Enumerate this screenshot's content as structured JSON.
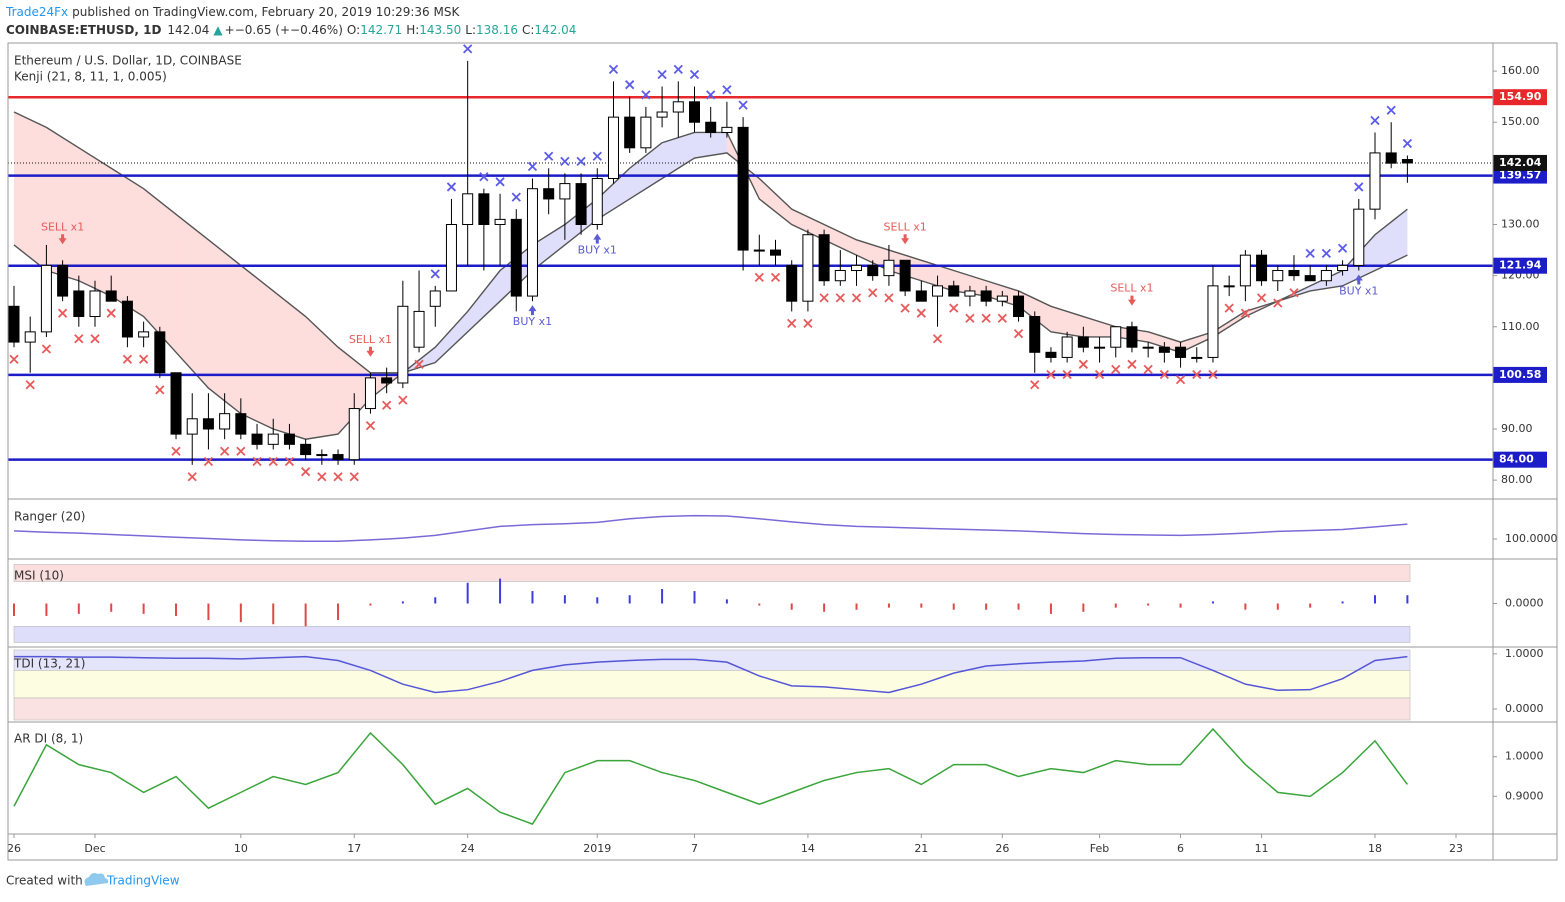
{
  "header": {
    "author": "Trade24Fx",
    "published": "published on TradingView.com, February 20, 2019 10:29:36 MSK",
    "symbol": "COINBASE:ETHUSD, 1D",
    "price": "142.04",
    "arrow": "▲",
    "change": "+−0.65 (+−0.46%)",
    "ohlc": [
      [
        "O:",
        "142.71"
      ],
      [
        "H:",
        "143.50"
      ],
      [
        "L:",
        "138.16"
      ],
      [
        "C:",
        "142.04"
      ]
    ]
  },
  "footer": {
    "text": "Created with",
    "brand": "TradingView"
  },
  "chart_data": {
    "type": "candlestick",
    "title": "Ethereum / U.S. Dollar, 1D, COINBASE",
    "indicator": "Kenji (21, 8, 11, 1, 0.005)",
    "x": [
      "2018-11-26",
      "2018-11-27",
      "2018-11-28",
      "2018-11-29",
      "2018-11-30",
      "2018-12-01",
      "2018-12-02",
      "2018-12-03",
      "2018-12-04",
      "2018-12-05",
      "2018-12-06",
      "2018-12-07",
      "2018-12-08",
      "2018-12-09",
      "2018-12-10",
      "2018-12-11",
      "2018-12-12",
      "2018-12-13",
      "2018-12-14",
      "2018-12-15",
      "2018-12-16",
      "2018-12-17",
      "2018-12-18",
      "2018-12-19",
      "2018-12-20",
      "2018-12-21",
      "2018-12-22",
      "2018-12-23",
      "2018-12-24",
      "2018-12-25",
      "2018-12-26",
      "2018-12-27",
      "2018-12-28",
      "2018-12-29",
      "2018-12-30",
      "2018-12-31",
      "2019-01-01",
      "2019-01-02",
      "2019-01-03",
      "2019-01-04",
      "2019-01-05",
      "2019-01-06",
      "2019-01-07",
      "2019-01-08",
      "2019-01-09",
      "2019-01-10",
      "2019-01-11",
      "2019-01-12",
      "2019-01-13",
      "2019-01-14",
      "2019-01-15",
      "2019-01-16",
      "2019-01-17",
      "2019-01-18",
      "2019-01-19",
      "2019-01-20",
      "2019-01-21",
      "2019-01-22",
      "2019-01-23",
      "2019-01-24",
      "2019-01-25",
      "2019-01-26",
      "2019-01-27",
      "2019-01-28",
      "2019-01-29",
      "2019-01-30",
      "2019-01-31",
      "2019-02-01",
      "2019-02-02",
      "2019-02-03",
      "2019-02-04",
      "2019-02-05",
      "2019-02-06",
      "2019-02-07",
      "2019-02-08",
      "2019-02-09",
      "2019-02-10",
      "2019-02-11",
      "2019-02-12",
      "2019-02-13",
      "2019-02-14",
      "2019-02-15",
      "2019-02-16",
      "2019-02-17",
      "2019-02-18",
      "2019-02-19",
      "2019-02-20"
    ],
    "open": [
      114,
      107,
      109,
      122,
      117,
      112,
      117,
      115,
      108,
      109,
      101,
      89,
      92,
      90,
      93,
      89,
      87,
      89,
      87,
      85,
      85,
      84,
      94,
      100,
      99,
      106,
      114,
      117,
      130,
      136,
      130,
      131,
      116,
      137,
      135,
      138,
      130,
      139,
      151,
      145,
      151,
      152,
      154,
      150,
      148,
      149,
      125,
      125,
      122,
      115,
      128,
      119,
      121,
      122,
      120,
      123,
      117,
      116,
      118,
      116,
      117,
      115,
      116,
      112,
      105,
      104,
      108,
      106,
      106,
      110,
      106,
      106,
      106,
      104,
      104,
      118,
      118,
      124,
      119,
      121,
      120,
      119,
      121,
      122,
      133,
      144,
      142.71
    ],
    "high": [
      118,
      112,
      126,
      123,
      120,
      119,
      120,
      116,
      111,
      110,
      101,
      97,
      97,
      97,
      96,
      91,
      92,
      91,
      88,
      86,
      86,
      97,
      101,
      102,
      119,
      121,
      118,
      135,
      162,
      137,
      136,
      133,
      139,
      141,
      140,
      140,
      141,
      158,
      155,
      153,
      157,
      158,
      157,
      153,
      154,
      151,
      128,
      127,
      123,
      129,
      129,
      125,
      124,
      123,
      126,
      123,
      119,
      120,
      119,
      118,
      118,
      117,
      117,
      113,
      106,
      109,
      110,
      108,
      110,
      111,
      107,
      107,
      107,
      106,
      122,
      120,
      125,
      125,
      122,
      124,
      122,
      122,
      123,
      135,
      148,
      150,
      143.5
    ],
    "low": [
      106,
      101,
      108,
      115,
      110,
      110,
      115,
      106,
      106,
      100,
      88,
      83,
      86,
      88,
      88,
      86,
      86,
      86,
      84,
      83,
      83,
      83,
      93,
      97,
      98,
      105,
      110,
      117,
      122,
      121,
      122,
      113,
      115,
      132,
      127,
      128,
      129,
      138,
      144,
      144,
      149,
      147,
      148,
      147,
      147,
      121,
      122,
      122,
      113,
      113,
      118,
      118,
      118,
      119,
      118,
      116,
      115,
      110,
      116,
      114,
      114,
      114,
      111,
      101,
      103,
      103,
      105,
      103,
      104,
      105,
      104,
      103,
      102,
      103,
      103,
      116,
      115,
      118,
      117,
      119,
      119,
      118,
      120,
      121,
      131,
      141,
      138.16
    ],
    "close": [
      107,
      109,
      122,
      116,
      112,
      117,
      115,
      108,
      109,
      101,
      89,
      92,
      90,
      93,
      89,
      87,
      89,
      87,
      85,
      85,
      84,
      94,
      100,
      99,
      114,
      113,
      117,
      130,
      136,
      130,
      131,
      116,
      137,
      135,
      138,
      130,
      139,
      151,
      145,
      151,
      152,
      154,
      150,
      148,
      149,
      125,
      125,
      124,
      115,
      128,
      119,
      121,
      122,
      120,
      123,
      117,
      115,
      118,
      116,
      117,
      115,
      116,
      112,
      105,
      104,
      108,
      106,
      106,
      110,
      106,
      106,
      105,
      104,
      104,
      118,
      118,
      124,
      119,
      121,
      120,
      119,
      121,
      122,
      133,
      144,
      142,
      142.04
    ],
    "xlim": [
      "2018-11-26",
      "2019-02-23"
    ],
    "xticks": [
      {
        "value": "2018-11-26",
        "label": "26"
      },
      {
        "value": "2018-12-01",
        "label": "Dec"
      },
      {
        "value": "2018-12-10",
        "label": "10"
      },
      {
        "value": "2018-12-17",
        "label": "17"
      },
      {
        "value": "2018-12-24",
        "label": "24"
      },
      {
        "value": "2019-01-01",
        "label": "2019"
      },
      {
        "value": "2019-01-07",
        "label": "7"
      },
      {
        "value": "2019-01-14",
        "label": "14"
      },
      {
        "value": "2019-01-21",
        "label": "21"
      },
      {
        "value": "2019-01-26",
        "label": "26"
      },
      {
        "value": "2019-02-01",
        "label": "Feb"
      },
      {
        "value": "2019-02-06",
        "label": "6"
      },
      {
        "value": "2019-02-11",
        "label": "11"
      },
      {
        "value": "2019-02-18",
        "label": "18"
      },
      {
        "value": "2019-02-23",
        "label": "23"
      }
    ],
    "ylim": [
      76.7,
      165.5
    ],
    "yticks": [
      {
        "value": 80,
        "label": "80.00"
      },
      {
        "value": 90,
        "label": "90.00"
      },
      {
        "value": 100,
        "label": "100.00"
      },
      {
        "value": 110,
        "label": "110.00"
      },
      {
        "value": 120,
        "label": "120.00"
      },
      {
        "value": 130,
        "label": "130.00"
      },
      {
        "value": 140,
        "label": "140.00"
      },
      {
        "value": 150,
        "label": "150.00"
      },
      {
        "value": 160,
        "label": "160.00"
      }
    ],
    "levels": [
      {
        "value": 154.9,
        "label": "154.90",
        "color": "#e8272a"
      },
      {
        "value": 139.57,
        "label": "139.57",
        "color": "#1c1cc8"
      },
      {
        "value": 121.94,
        "label": "121.94",
        "color": "#1c1cc8"
      },
      {
        "value": 100.58,
        "label": "100.58",
        "color": "#1c1cc8"
      },
      {
        "value": 84,
        "label": "84.00",
        "color": "#1c1cc8"
      }
    ],
    "last": {
      "value": 142.04,
      "label": "142.04",
      "color": "#111111"
    },
    "colors": {
      "up": "#ffffff",
      "down": "#000000",
      "cross_up": "#5b5be8",
      "cross_down": "#e85a5a",
      "fill_up": "rgba(110,110,240,0.22)",
      "fill_down": "rgba(250,120,120,0.25)",
      "kenji": "#555555"
    },
    "signal_colors": {
      "sell": "#e85b5b",
      "buy": "#5b5bd6"
    },
    "signals": [
      {
        "label": "SELL x1",
        "x": "2018-11-29",
        "side": "sell"
      },
      {
        "label": "SELL x1",
        "x": "2018-12-18",
        "side": "sell"
      },
      {
        "label": "BUY x1",
        "x": "2018-12-28",
        "side": "buy"
      },
      {
        "label": "BUY x1",
        "x": "2019-01-01",
        "side": "buy"
      },
      {
        "label": "SELL x1",
        "x": "2019-01-20",
        "side": "sell"
      },
      {
        "label": "SELL x1",
        "x": "2019-02-03",
        "side": "sell"
      },
      {
        "label": "BUY x1",
        "x": "2019-02-17",
        "side": "buy"
      }
    ],
    "indicator_x": [
      "2018-11-26",
      "2018-11-28",
      "2018-11-30",
      "2018-12-02",
      "2018-12-04",
      "2018-12-06",
      "2018-12-08",
      "2018-12-10",
      "2018-12-12",
      "2018-12-14",
      "2018-12-16",
      "2018-12-18",
      "2018-12-20",
      "2018-12-22",
      "2018-12-24",
      "2018-12-26",
      "2018-12-28",
      "2018-12-30",
      "2019-01-01",
      "2019-01-03",
      "2019-01-05",
      "2019-01-07",
      "2019-01-09",
      "2019-01-11",
      "2019-01-13",
      "2019-01-15",
      "2019-01-17",
      "2019-01-19",
      "2019-01-21",
      "2019-01-23",
      "2019-01-25",
      "2019-01-27",
      "2019-01-29",
      "2019-01-31",
      "2019-02-02",
      "2019-02-04",
      "2019-02-06",
      "2019-02-08",
      "2019-02-10",
      "2019-02-12",
      "2019-02-14",
      "2019-02-16",
      "2019-02-18",
      "2019-02-20"
    ],
    "kenji": [
      {
        "values": [
          152,
          149,
          145,
          141,
          137,
          132,
          127,
          122,
          117,
          112,
          106,
          101,
          101,
          103,
          109,
          115,
          121,
          126,
          131,
          135,
          139,
          143,
          144,
          139,
          133,
          130,
          127,
          125,
          123,
          121,
          119,
          117,
          114,
          112,
          110,
          109,
          107,
          109,
          113,
          115,
          117,
          118,
          121,
          124
        ]
      },
      {
        "values": [
          126,
          121,
          119,
          116,
          112,
          105,
          98,
          93,
          90,
          88,
          89,
          96,
          101,
          106,
          113,
          121,
          126,
          130,
          135,
          141,
          146,
          148,
          148,
          135,
          130,
          127,
          124,
          121,
          119,
          117,
          116,
          114,
          109,
          108,
          108,
          107,
          105,
          108,
          112,
          115,
          118,
          121,
          128,
          133
        ]
      }
    ],
    "panes": [
      {
        "type": "line",
        "title": "Ranger (20)",
        "ylim": [
          60,
          180
        ],
        "yticks": [
          {
            "value": 100,
            "label": "100.0000"
          }
        ],
        "bands": [],
        "series": [
          {
            "color": "#7a6ad8",
            "values": [
              118,
              115,
              113,
              110,
              107,
              104,
              101,
              98,
              96,
              95,
              95,
              98,
              102,
              108,
              118,
              128,
              132,
              134,
              137,
              145,
              150,
              152,
              151,
              145,
              138,
              132,
              128,
              126,
              124,
              122,
              120,
              118,
              115,
              112,
              110,
              109,
              108,
              110,
              113,
              117,
              119,
              121,
              127,
              133
            ]
          }
        ]
      },
      {
        "type": "histogram",
        "title": "MSI (10)",
        "ylim": [
          -1,
          1
        ],
        "yticks": [
          {
            "value": 0,
            "label": "0.0000"
          }
        ],
        "bands": [
          {
            "range": [
              0.53,
              0.94
            ],
            "color": "#fbdede"
          },
          {
            "range": [
              -0.94,
              -0.55
            ],
            "color": "#dedefa"
          }
        ],
        "colors": {
          "up": "#3c3ce0",
          "down": "#e04848"
        },
        "values": [
          -0.3,
          -0.3,
          -0.25,
          -0.2,
          -0.25,
          -0.3,
          -0.4,
          -0.45,
          -0.5,
          -0.55,
          -0.4,
          -0.05,
          0.05,
          0.15,
          0.5,
          0.6,
          0.3,
          0.2,
          0.15,
          0.2,
          0.35,
          0.3,
          0.1,
          -0.05,
          -0.15,
          -0.2,
          -0.15,
          -0.1,
          -0.1,
          -0.15,
          -0.15,
          -0.15,
          -0.25,
          -0.2,
          -0.1,
          -0.05,
          -0.1,
          0.05,
          -0.15,
          -0.15,
          -0.1,
          0.05,
          0.2,
          0.2
        ]
      },
      {
        "type": "line",
        "title": "TDI (13, 21)",
        "ylim": [
          -0.2,
          1.07
        ],
        "yticks": [
          {
            "value": 1,
            "label": "1.0000"
          },
          {
            "value": 0,
            "label": "0.0000"
          }
        ],
        "bands": [
          {
            "range": [
              0.7,
              1.07
            ],
            "color": "#e4e4fa"
          },
          {
            "range": [
              0.2,
              0.7
            ],
            "color": "#fdfde2"
          },
          {
            "range": [
              -0.2,
              0.2
            ],
            "color": "#fbe2e2"
          }
        ],
        "series": [
          {
            "color": "#5555d8",
            "values": [
              0.95,
              0.95,
              0.94,
              0.94,
              0.93,
              0.92,
              0.92,
              0.91,
              0.93,
              0.95,
              0.88,
              0.7,
              0.45,
              0.3,
              0.35,
              0.5,
              0.7,
              0.8,
              0.85,
              0.88,
              0.9,
              0.9,
              0.85,
              0.6,
              0.42,
              0.4,
              0.35,
              0.3,
              0.45,
              0.65,
              0.78,
              0.82,
              0.85,
              0.87,
              0.92,
              0.93,
              0.93,
              0.7,
              0.45,
              0.34,
              0.35,
              0.55,
              0.88,
              0.95
            ]
          }
        ]
      },
      {
        "type": "line",
        "title": "AR DI (8, 1)",
        "ylim": [
          0.81,
          1.08
        ],
        "yticks": [
          {
            "value": 1,
            "label": "1.0000"
          },
          {
            "value": 0.9,
            "label": "0.9000"
          }
        ],
        "bands": [],
        "series": [
          {
            "color": "#3aa53a",
            "values": [
              0.875,
              1.03,
              0.98,
              0.96,
              0.91,
              0.95,
              0.87,
              0.91,
              0.95,
              0.93,
              0.96,
              1.06,
              0.98,
              0.88,
              0.92,
              0.86,
              0.83,
              0.96,
              0.99,
              0.99,
              0.96,
              0.94,
              0.91,
              0.88,
              0.91,
              0.94,
              0.96,
              0.97,
              0.93,
              0.98,
              0.98,
              0.95,
              0.97,
              0.96,
              0.99,
              0.98,
              0.98,
              1.07,
              0.98,
              0.91,
              0.9,
              0.96,
              1.04,
              0.93
            ]
          }
        ]
      }
    ]
  }
}
